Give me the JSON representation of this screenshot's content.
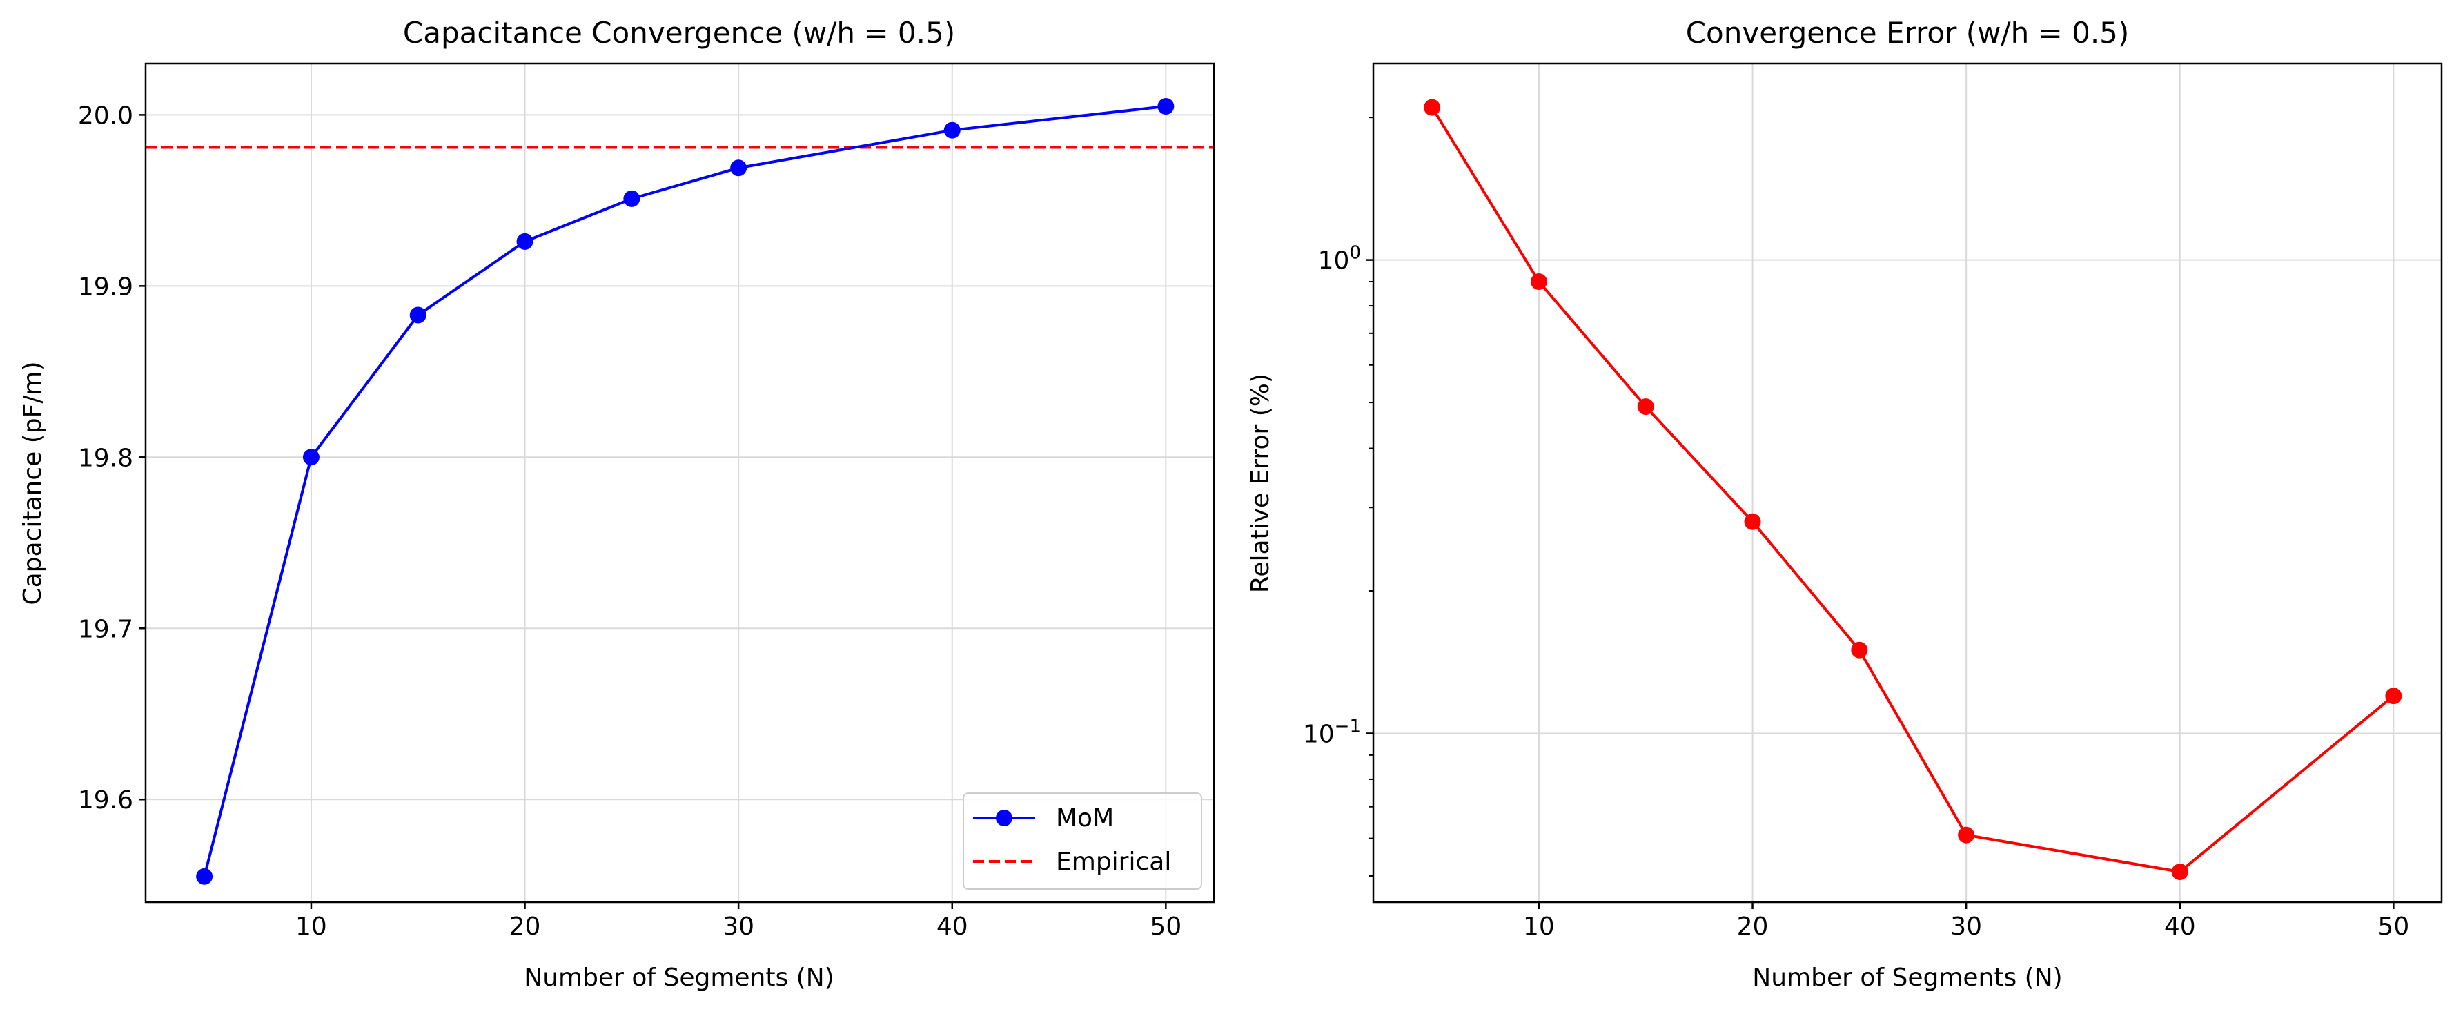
{
  "figure": {
    "colors": {
      "background": "#ffffff",
      "axes": "#000000",
      "grid": "#d9d9d9"
    }
  },
  "chart_data": [
    {
      "type": "line",
      "title": "Capacitance Convergence (w/h = 0.5)",
      "xlabel": "Number of Segments (N)",
      "ylabel": "Capacitance (pF/m)",
      "xlim": [
        2.25,
        52.25
      ],
      "ylim": [
        19.54,
        20.03
      ],
      "xticks": [
        10,
        20,
        30,
        40,
        50
      ],
      "yticks": [
        19.6,
        19.7,
        19.8,
        19.9,
        20.0
      ],
      "ytick_labels": [
        "19.6",
        "19.7",
        "19.8",
        "19.9",
        "20.0"
      ],
      "yscale": "linear",
      "grid": true,
      "legend_position": "lower-right",
      "series": [
        {
          "name": "MoM",
          "style": "solid-line-circle-markers",
          "color": "#0000ff",
          "x": [
            5,
            10,
            15,
            20,
            25,
            30,
            40,
            50
          ],
          "y": [
            19.555,
            19.8,
            19.883,
            19.926,
            19.951,
            19.969,
            19.991,
            20.005
          ]
        },
        {
          "name": "Empirical",
          "style": "dashed-horizontal-line",
          "color": "#ff0000",
          "x": [
            2.25,
            52.25
          ],
          "y": [
            19.981,
            19.981
          ]
        }
      ]
    },
    {
      "type": "line",
      "title": "Convergence Error (w/h = 0.5)",
      "xlabel": "Number of Segments (N)",
      "ylabel": "Relative Error (%)",
      "xlim": [
        2.25,
        52.25
      ],
      "ylim": [
        0.044,
        2.6
      ],
      "xticks": [
        10,
        20,
        30,
        40,
        50
      ],
      "yscale": "log",
      "ytick_major": [
        {
          "value": 1,
          "base": "10",
          "exp": "0"
        },
        {
          "value": 0.1,
          "base": "10",
          "exp": "−1"
        }
      ],
      "ytick_minor": [
        0.05,
        0.06,
        0.07,
        0.08,
        0.09,
        0.2,
        0.3,
        0.4,
        0.5,
        0.6,
        0.7,
        0.8,
        0.9,
        2
      ],
      "grid": true,
      "series": [
        {
          "style": "solid-line-circle-markers",
          "color": "#ff0000",
          "x": [
            5,
            10,
            15,
            20,
            25,
            30,
            40,
            50
          ],
          "y": [
            2.1,
            0.9,
            0.49,
            0.28,
            0.15,
            0.061,
            0.051,
            0.12
          ]
        }
      ]
    }
  ]
}
